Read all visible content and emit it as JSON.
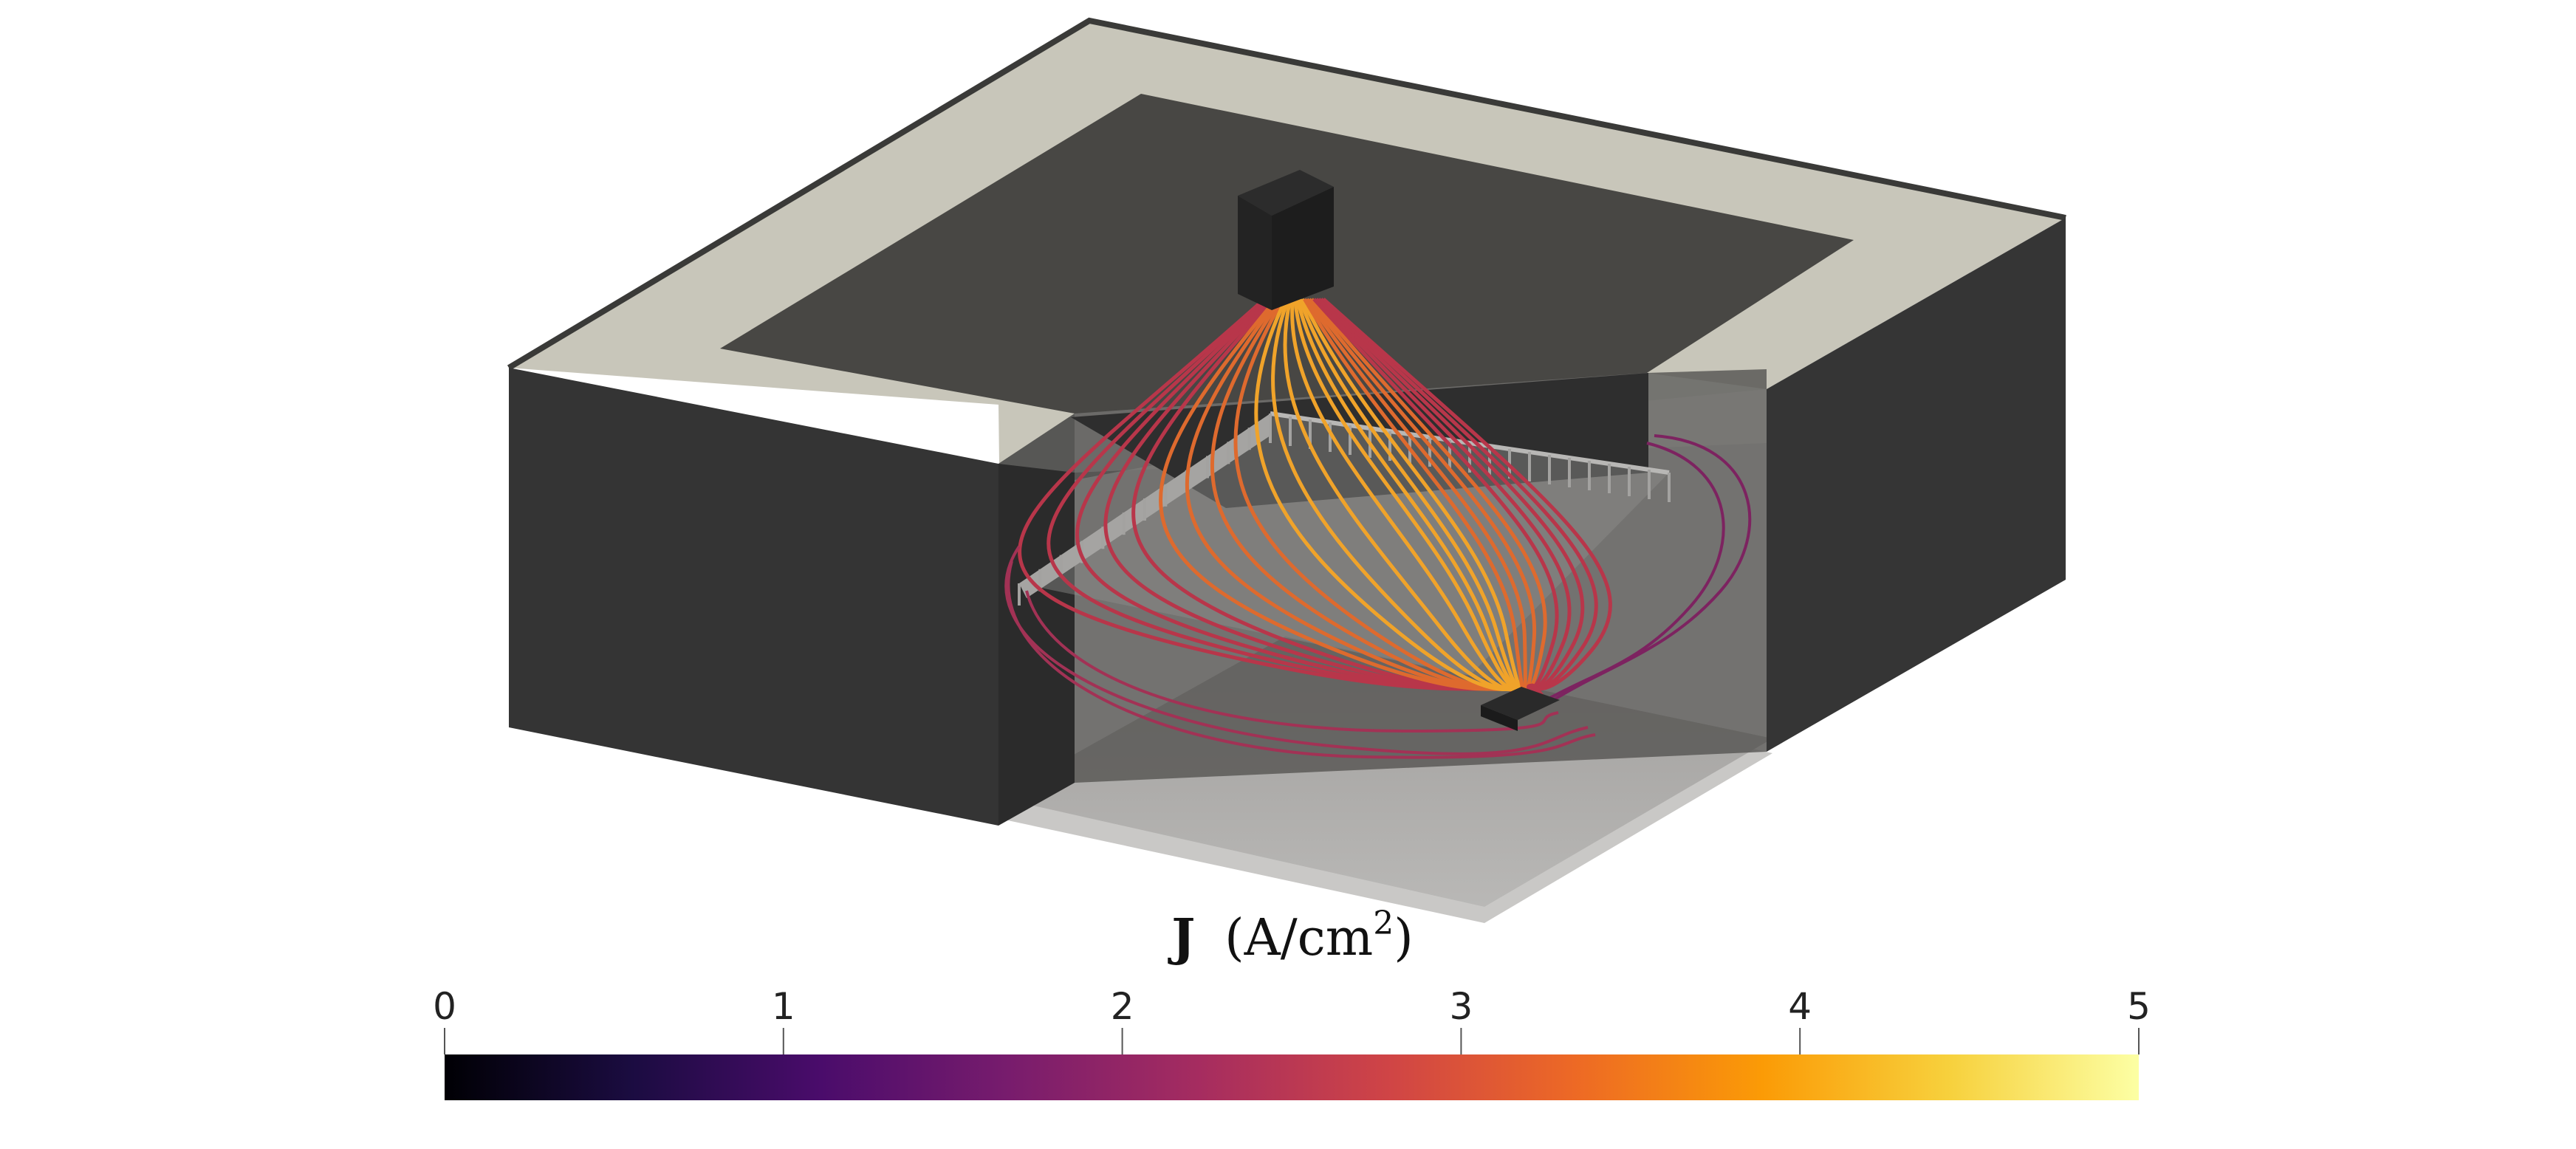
{
  "colorbar": {
    "title_symbol": "J",
    "title_unit": "(A/cm",
    "title_exponent": "2",
    "title_close": ")",
    "ticks": [
      "0",
      "1",
      "2",
      "3",
      "4",
      "5"
    ],
    "range": [
      0,
      5
    ],
    "colormap": "inferno",
    "stops": [
      "#000004",
      "#1b0c41",
      "#4a0c6b",
      "#781c6d",
      "#a52c60",
      "#cf4446",
      "#ed6925",
      "#fb9b06",
      "#f7d13d",
      "#fcffa4"
    ]
  },
  "colors": {
    "frame_top": "#c8c6ba",
    "frame_side": "#353535",
    "recess_floor": "#484744",
    "electrode": "#222222",
    "floor_plate": "#a6a4a2"
  }
}
